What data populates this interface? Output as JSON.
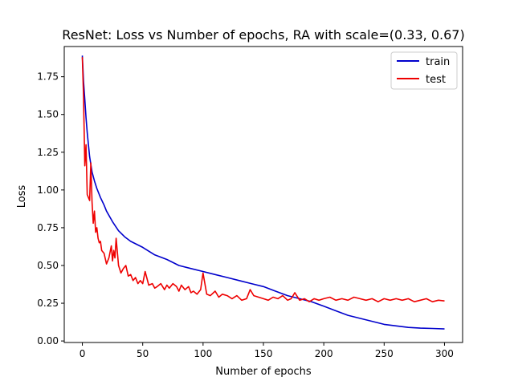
{
  "chart_data": {
    "type": "line",
    "title": "ResNet: Loss vs Number of epochs, RA with scale=(0.33, 0.67)",
    "xlabel": "Number of epochs",
    "ylabel": "Loss",
    "xlim": [
      -15,
      315
    ],
    "ylim": [
      -0.01,
      1.95
    ],
    "xticks": [
      0,
      50,
      100,
      150,
      200,
      250,
      300
    ],
    "xtick_labels": [
      "0",
      "50",
      "100",
      "150",
      "200",
      "250",
      "300"
    ],
    "yticks": [
      0.0,
      0.25,
      0.5,
      0.75,
      1.0,
      1.25,
      1.5,
      1.75
    ],
    "ytick_labels": [
      "0.00",
      "0.25",
      "0.50",
      "0.75",
      "1.00",
      "1.25",
      "1.50",
      "1.75"
    ],
    "grid": false,
    "legend_position": "top-right",
    "series": [
      {
        "name": "train",
        "color": "#0000cc",
        "x": [
          0,
          1,
          2,
          3,
          4,
          5,
          6,
          8,
          10,
          12,
          15,
          18,
          20,
          25,
          30,
          35,
          40,
          45,
          50,
          60,
          70,
          80,
          90,
          100,
          110,
          120,
          130,
          140,
          150,
          160,
          170,
          180,
          190,
          200,
          210,
          220,
          230,
          240,
          250,
          260,
          270,
          280,
          290,
          300
        ],
        "y": [
          1.89,
          1.72,
          1.6,
          1.48,
          1.38,
          1.3,
          1.22,
          1.12,
          1.06,
          1.01,
          0.95,
          0.9,
          0.86,
          0.79,
          0.73,
          0.69,
          0.66,
          0.64,
          0.62,
          0.57,
          0.54,
          0.5,
          0.48,
          0.46,
          0.44,
          0.42,
          0.4,
          0.38,
          0.36,
          0.33,
          0.3,
          0.28,
          0.26,
          0.23,
          0.2,
          0.17,
          0.15,
          0.13,
          0.11,
          0.1,
          0.09,
          0.085,
          0.083,
          0.08
        ]
      },
      {
        "name": "test",
        "color": "#ee0000",
        "x": [
          0,
          1,
          2,
          3,
          4,
          5,
          6,
          7,
          8,
          9,
          10,
          11,
          12,
          13,
          14,
          15,
          16,
          18,
          20,
          22,
          24,
          25,
          26,
          27,
          28,
          30,
          32,
          34,
          36,
          38,
          40,
          42,
          44,
          46,
          48,
          50,
          52,
          55,
          58,
          60,
          62,
          65,
          68,
          70,
          72,
          75,
          78,
          80,
          82,
          85,
          88,
          90,
          92,
          95,
          98,
          100,
          103,
          106,
          110,
          113,
          116,
          120,
          124,
          128,
          132,
          136,
          139,
          142,
          146,
          150,
          154,
          158,
          162,
          166,
          170,
          173,
          176,
          180,
          184,
          188,
          192,
          196,
          200,
          205,
          210,
          215,
          220,
          225,
          230,
          235,
          240,
          245,
          250,
          255,
          260,
          265,
          270,
          275,
          280,
          285,
          290,
          295,
          300
        ],
        "y": [
          1.88,
          1.62,
          1.16,
          1.3,
          0.97,
          0.95,
          0.93,
          1.18,
          0.92,
          0.78,
          0.86,
          0.72,
          0.75,
          0.68,
          0.65,
          0.66,
          0.6,
          0.58,
          0.51,
          0.55,
          0.63,
          0.53,
          0.6,
          0.55,
          0.68,
          0.5,
          0.45,
          0.48,
          0.5,
          0.43,
          0.44,
          0.4,
          0.42,
          0.38,
          0.4,
          0.38,
          0.46,
          0.37,
          0.38,
          0.35,
          0.36,
          0.38,
          0.34,
          0.37,
          0.35,
          0.38,
          0.36,
          0.33,
          0.37,
          0.34,
          0.36,
          0.32,
          0.33,
          0.31,
          0.34,
          0.45,
          0.31,
          0.3,
          0.33,
          0.29,
          0.31,
          0.3,
          0.28,
          0.3,
          0.27,
          0.28,
          0.34,
          0.3,
          0.29,
          0.28,
          0.27,
          0.29,
          0.28,
          0.3,
          0.27,
          0.28,
          0.32,
          0.27,
          0.28,
          0.26,
          0.28,
          0.27,
          0.28,
          0.29,
          0.27,
          0.28,
          0.27,
          0.29,
          0.28,
          0.27,
          0.28,
          0.26,
          0.28,
          0.27,
          0.28,
          0.27,
          0.28,
          0.26,
          0.27,
          0.28,
          0.26,
          0.27,
          0.265
        ]
      }
    ]
  }
}
